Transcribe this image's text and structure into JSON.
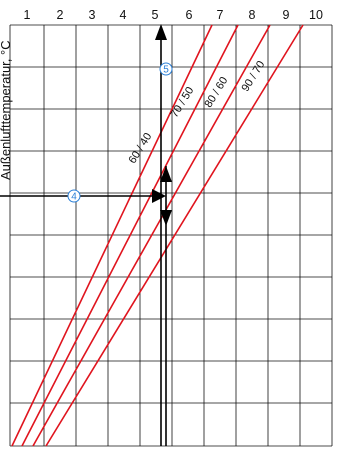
{
  "figure": {
    "y_axis_title_visible_fragment": "Außenlufttemperatur, °C",
    "marker_4": "4",
    "marker_5": "5"
  },
  "colors": {
    "curve": "#e0141e",
    "grid": "#111111",
    "marker": "#2a7fd6",
    "arrow": "#000000"
  },
  "chart_data": {
    "type": "line",
    "x_ticks": [
      "1",
      "2",
      "3",
      "4",
      "5",
      "6",
      "7",
      "8",
      "9",
      "10"
    ],
    "xlim": [
      1,
      10
    ],
    "grid": true,
    "series": [
      {
        "name": "60 / 40"
      },
      {
        "name": "70 / 50"
      },
      {
        "name": "80 / 60"
      },
      {
        "name": "90 / 70"
      }
    ],
    "annotations": [
      "4",
      "5"
    ]
  }
}
